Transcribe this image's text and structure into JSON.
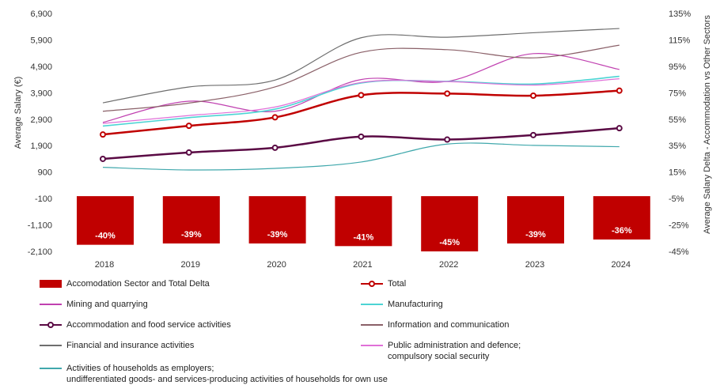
{
  "chart_data": {
    "type": "bar+line",
    "categories": [
      "2018",
      "2019",
      "2020",
      "2021",
      "2022",
      "2023",
      "2024"
    ],
    "left_axis": {
      "label": "Average Salary (€)",
      "ticks": [
        "6,900",
        "5,900",
        "4,900",
        "3,900",
        "2,900",
        "1,900",
        "900",
        "-100",
        "-1,100",
        "-2,100"
      ],
      "range": [
        -2100,
        6900
      ]
    },
    "right_axis": {
      "label": "Average Salary Delta - Accommodation vs Other Sectors",
      "ticks": [
        "135%",
        "115%",
        "95%",
        "75%",
        "55%",
        "35%",
        "15%",
        "-5%",
        "-25%",
        "-45%"
      ],
      "range": [
        -45,
        135
      ]
    },
    "bars": {
      "name": "Accomodation Sector and Total Delta",
      "color": "#c00000",
      "values": [
        -40,
        -39,
        -39,
        -41,
        -45,
        -39,
        -36
      ],
      "labels": [
        "-40%",
        "-39%",
        "-39%",
        "-41%",
        "-45%",
        "-39%",
        "-36%"
      ]
    },
    "series": [
      {
        "name": "Total",
        "color": "#c00000",
        "width": 2.5,
        "markers": true,
        "values": [
          2320,
          2650,
          2970,
          3810,
          3870,
          3790,
          3980
        ]
      },
      {
        "name": "Mining and quarrying",
        "color": "#c040b0",
        "width": 1.2,
        "markers": false,
        "values": [
          2780,
          3580,
          3200,
          4400,
          4330,
          5380,
          4780
        ]
      },
      {
        "name": "Manufacturing",
        "color": "#4cd4d4",
        "width": 1.6,
        "markers": false,
        "values": [
          2640,
          2960,
          3280,
          4270,
          4330,
          4230,
          4520
        ]
      },
      {
        "name": "Accommodation and food service activities",
        "color": "#5a0a44",
        "width": 2.5,
        "markers": true,
        "values": [
          1400,
          1640,
          1820,
          2240,
          2130,
          2300,
          2560
        ]
      },
      {
        "name": "Information and communication",
        "color": "#8a6068",
        "width": 1.2,
        "markers": false,
        "values": [
          3200,
          3510,
          4120,
          5430,
          5530,
          5220,
          5700
        ]
      },
      {
        "name": "Financial and insurance activities",
        "color": "#6e6e6e",
        "width": 1.2,
        "markers": false,
        "values": [
          3520,
          4120,
          4380,
          5980,
          6000,
          6170,
          6330
        ]
      },
      {
        "name": "Public administration and defence;\ncompulsory social security",
        "color": "#e070d8",
        "width": 1.2,
        "markers": false,
        "values": [
          2740,
          3040,
          3360,
          4290,
          4320,
          4190,
          4430
        ]
      },
      {
        "name": "Activities of households as employers;\nundifferentiated goods- and services-producing activities of households for own use",
        "color": "#40a8ac",
        "width": 1.2,
        "markers": false,
        "values": [
          1080,
          980,
          1040,
          1280,
          1960,
          1910,
          1860
        ]
      }
    ],
    "legend_position": "bottom",
    "grid": false
  }
}
